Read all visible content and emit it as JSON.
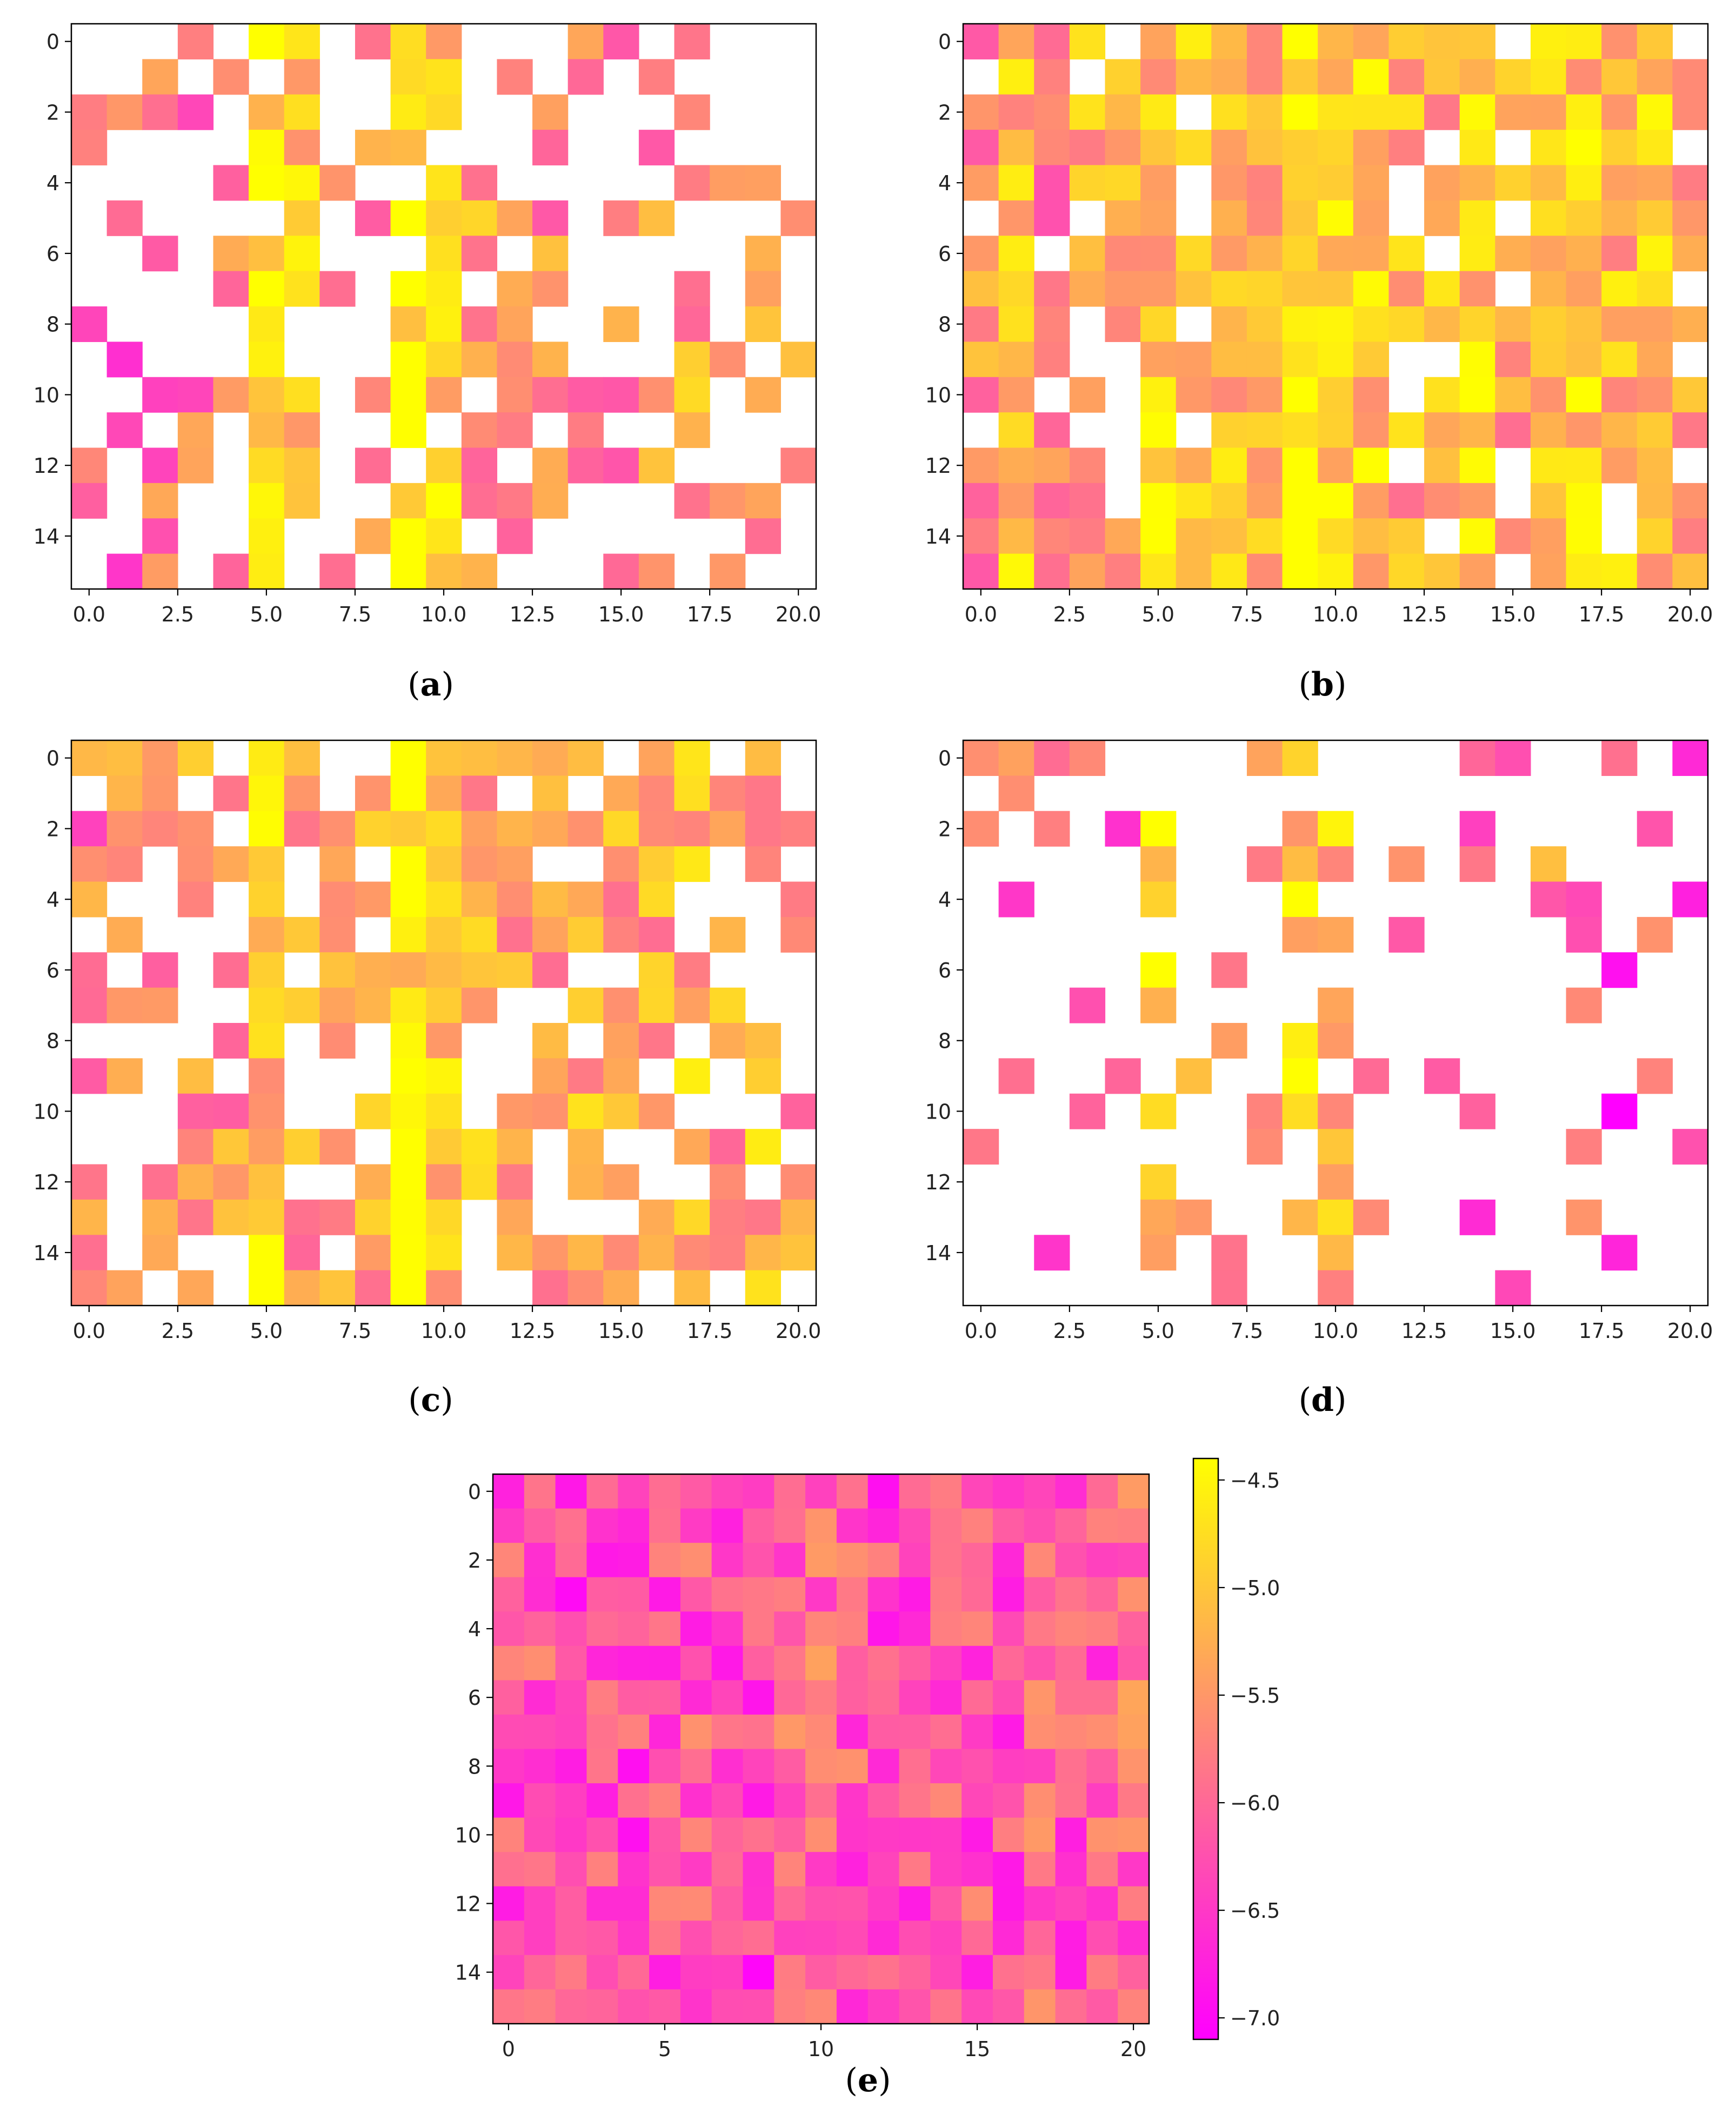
{
  "figure": {
    "background": "#ffffff"
  },
  "colormap": {
    "name": "spring",
    "low": "#ff00ff",
    "high": "#ffff00",
    "blank": "#ffffff"
  },
  "chart_data": [
    {
      "type": "heatmap",
      "id": "a",
      "caption": "(a)",
      "letter": "a",
      "rows": 16,
      "cols": 21,
      "seed": 11,
      "fill": 0.34,
      "colMeans": [
        -5.8,
        -6.0,
        -5.8,
        -5.8,
        -5.6,
        -4.7,
        -4.9,
        -5.7,
        -5.6,
        -4.6,
        -5.0,
        -5.4,
        -5.8,
        -5.6,
        -5.5,
        -5.6,
        -5.6,
        -5.4,
        -5.6,
        -5.5,
        -5.6
      ],
      "xticks": [
        0.0,
        2.5,
        5.0,
        7.5,
        10.0,
        12.5,
        15.0,
        17.5,
        20.0
      ],
      "xtick_labels": [
        "0.0",
        "2.5",
        "5.0",
        "7.5",
        "10.0",
        "12.5",
        "15.0",
        "17.5",
        "20.0"
      ],
      "yticks": [
        0,
        2,
        4,
        6,
        8,
        10,
        12,
        14
      ],
      "ytick_labels": [
        "0",
        "2",
        "4",
        "6",
        "8",
        "10",
        "12",
        "14"
      ],
      "xlim": [
        -0.5,
        20.5
      ],
      "ylim": [
        15.5,
        -0.5
      ],
      "clim": [
        -7.1,
        -4.4
      ],
      "masked": "white"
    },
    {
      "type": "heatmap",
      "id": "b",
      "caption": "(b)",
      "letter": "b",
      "rows": 16,
      "cols": 21,
      "seed": 23,
      "fill": 0.72,
      "colMeans": [
        -5.6,
        -5.1,
        -5.6,
        -5.3,
        -5.4,
        -5.0,
        -5.2,
        -5.1,
        -5.1,
        -4.6,
        -4.8,
        -5.0,
        -5.3,
        -5.3,
        -5.0,
        -5.3,
        -5.1,
        -5.0,
        -5.2,
        -5.0,
        -5.3
      ],
      "xticks": [
        0.0,
        2.5,
        5.0,
        7.5,
        10.0,
        12.5,
        15.0,
        17.5,
        20.0
      ],
      "xtick_labels": [
        "0.0",
        "2.5",
        "5.0",
        "7.5",
        "10.0",
        "12.5",
        "15.0",
        "17.5",
        "20.0"
      ],
      "yticks": [
        0,
        2,
        4,
        6,
        8,
        10,
        12,
        14
      ],
      "ytick_labels": [
        "0",
        "2",
        "4",
        "6",
        "8",
        "10",
        "12",
        "14"
      ],
      "xlim": [
        -0.5,
        20.5
      ],
      "ylim": [
        15.5,
        -0.5
      ],
      "clim": [
        -7.1,
        -4.4
      ],
      "masked": "white"
    },
    {
      "type": "heatmap",
      "id": "c",
      "caption": "(c)",
      "letter": "c",
      "rows": 16,
      "cols": 21,
      "seed": 37,
      "fill": 0.62,
      "colMeans": [
        -5.8,
        -5.4,
        -5.6,
        -5.5,
        -5.6,
        -5.0,
        -5.4,
        -5.3,
        -5.3,
        -4.7,
        -5.0,
        -5.3,
        -5.5,
        -5.5,
        -5.2,
        -5.3,
        -5.4,
        -5.2,
        -5.4,
        -5.2,
        -5.5
      ],
      "xticks": [
        0.0,
        2.5,
        5.0,
        7.5,
        10.0,
        12.5,
        15.0,
        17.5,
        20.0
      ],
      "xtick_labels": [
        "0.0",
        "2.5",
        "5.0",
        "7.5",
        "10.0",
        "12.5",
        "15.0",
        "17.5",
        "20.0"
      ],
      "yticks": [
        0,
        2,
        4,
        6,
        8,
        10,
        12,
        14
      ],
      "ytick_labels": [
        "0",
        "2",
        "4",
        "6",
        "8",
        "10",
        "12",
        "14"
      ],
      "xlim": [
        -0.5,
        20.5
      ],
      "ylim": [
        15.5,
        -0.5
      ],
      "clim": [
        -7.1,
        -4.4
      ],
      "masked": "white"
    },
    {
      "type": "heatmap",
      "id": "d",
      "caption": "(d)",
      "letter": "d",
      "rows": 16,
      "cols": 21,
      "seed": 53,
      "fill": 0.2,
      "colMeans": [
        -6.0,
        -6.0,
        -6.0,
        -6.0,
        -6.0,
        -4.8,
        -5.3,
        -6.0,
        -5.8,
        -4.9,
        -5.1,
        -6.0,
        -6.0,
        -5.9,
        -6.2,
        -5.8,
        -5.6,
        -5.8,
        -6.5,
        -5.8,
        -6.3
      ],
      "xticks": [
        0.0,
        2.5,
        5.0,
        7.5,
        10.0,
        12.5,
        15.0,
        17.5,
        20.0
      ],
      "xtick_labels": [
        "0.0",
        "2.5",
        "5.0",
        "7.5",
        "10.0",
        "12.5",
        "15.0",
        "17.5",
        "20.0"
      ],
      "yticks": [
        0,
        2,
        4,
        6,
        8,
        10,
        12,
        14
      ],
      "ytick_labels": [
        "0",
        "2",
        "4",
        "6",
        "8",
        "10",
        "12",
        "14"
      ],
      "xlim": [
        -0.5,
        20.5
      ],
      "ylim": [
        15.5,
        -0.5
      ],
      "clim": [
        -7.1,
        -4.4
      ],
      "masked": "white"
    },
    {
      "type": "heatmap",
      "id": "e",
      "caption": "(e)",
      "letter": "e",
      "rows": 16,
      "cols": 21,
      "seed": 71,
      "fill": 1.0,
      "colMeans": [
        -6.3,
        -6.1,
        -6.4,
        -6.2,
        -6.3,
        -6.2,
        -6.2,
        -6.4,
        -6.4,
        -6.0,
        -5.9,
        -6.1,
        -6.3,
        -6.2,
        -6.3,
        -6.2,
        -6.2,
        -6.0,
        -6.3,
        -6.1,
        -6.0
      ],
      "xticks": [
        0,
        5,
        10,
        15,
        20
      ],
      "xtick_labels": [
        "0",
        "5",
        "10",
        "15",
        "20"
      ],
      "yticks": [
        0,
        2,
        4,
        6,
        8,
        10,
        12,
        14
      ],
      "ytick_labels": [
        "0",
        "2",
        "4",
        "6",
        "8",
        "10",
        "12",
        "14"
      ],
      "xlim": [
        -0.5,
        20.5
      ],
      "ylim": [
        15.5,
        -0.5
      ],
      "clim": [
        -7.1,
        -4.4
      ],
      "colorbar": {
        "ticks": [
          -4.5,
          -5.0,
          -5.5,
          -6.0,
          -6.5,
          -7.0
        ],
        "tick_labels": [
          "−4.5",
          "−5.0",
          "−5.5",
          "−6.0",
          "−6.5",
          "−7.0"
        ],
        "range": [
          -7.1,
          -4.4
        ]
      }
    }
  ]
}
